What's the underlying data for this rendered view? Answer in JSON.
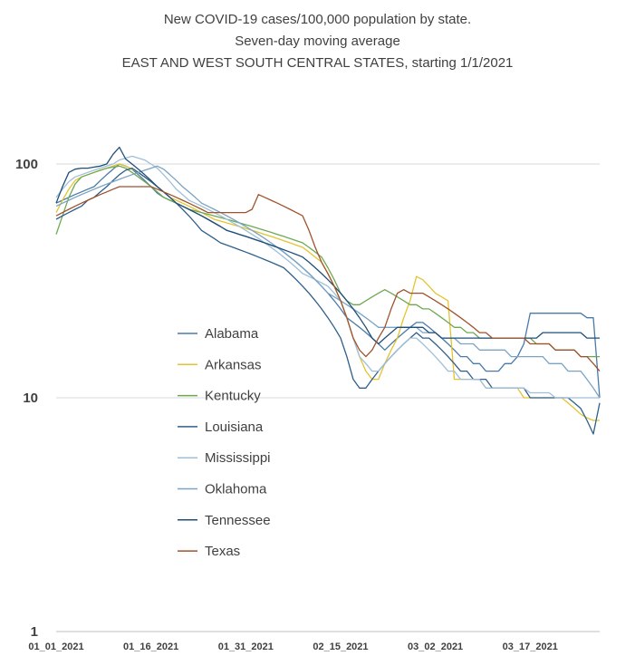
{
  "chart_data": {
    "type": "line",
    "title": [
      "New COVID-19 cases/100,000 population by state.",
      "Seven-day moving average",
      "EAST AND WEST SOUTH CENTRAL STATES, starting 1/1/2021"
    ],
    "xlabel": "",
    "ylabel": "",
    "yscale": "log",
    "ylim": [
      1,
      100
    ],
    "yticks": [
      1,
      10,
      100
    ],
    "ytick_labels": [
      "1",
      "10",
      "100"
    ],
    "xticks": [
      0,
      15,
      30,
      45,
      60,
      75
    ],
    "xtick_labels": [
      "01_01_2021",
      "01_16_2021",
      "01_31_2021",
      "02_15_2021",
      "03_02_2021",
      "03_17_2021"
    ],
    "x_count": 87,
    "grid": true,
    "legend_position": "center-left",
    "series": [
      {
        "name": "Alabama",
        "color": "#4a7aa8",
        "values": [
          68,
          70,
          72,
          74,
          76,
          78,
          80,
          85,
          90,
          95,
          100,
          98,
          95,
          90,
          85,
          80,
          75,
          72,
          70,
          68,
          66,
          64,
          62,
          60,
          58,
          56,
          54,
          52,
          51,
          50,
          49,
          48,
          47,
          46,
          45,
          44,
          42,
          40,
          38,
          36,
          34,
          32,
          30,
          28,
          26,
          24,
          22,
          21,
          20,
          19,
          18,
          17,
          16,
          17,
          18,
          19,
          20,
          21,
          21,
          20,
          19,
          18,
          17,
          16,
          15,
          15,
          14,
          14,
          13,
          13,
          13,
          14,
          14,
          15,
          17,
          23,
          23,
          23,
          23,
          23,
          23,
          23,
          23,
          23,
          22,
          22,
          10
        ]
      },
      {
        "name": "Arkansas",
        "color": "#e3c42f",
        "values": [
          62,
          70,
          78,
          85,
          88,
          90,
          92,
          94,
          96,
          98,
          100,
          98,
          95,
          92,
          88,
          84,
          80,
          76,
          72,
          70,
          68,
          66,
          64,
          62,
          60,
          58,
          57,
          56,
          55,
          54,
          53,
          52,
          51,
          50,
          49,
          48,
          47,
          46,
          45,
          44,
          42,
          40,
          38,
          34,
          30,
          26,
          22,
          18,
          15,
          13,
          12,
          12,
          14,
          16,
          18,
          22,
          26,
          33,
          32,
          30,
          28,
          27,
          26,
          12,
          12,
          12,
          12,
          12,
          11,
          11,
          11,
          11,
          11,
          11,
          10,
          10,
          10,
          10,
          10,
          10,
          10,
          9.5,
          9,
          8.5,
          8.2,
          8,
          8
        ]
      },
      {
        "name": "Kentucky",
        "color": "#6fa855",
        "values": [
          50,
          60,
          72,
          82,
          88,
          90,
          92,
          94,
          96,
          97,
          98,
          96,
          92,
          88,
          84,
          80,
          76,
          72,
          70,
          68,
          66,
          64,
          63,
          62,
          61,
          60,
          59,
          58,
          57,
          56,
          55,
          54,
          53,
          52,
          51,
          50,
          49,
          48,
          47,
          46,
          44,
          42,
          40,
          36,
          32,
          28,
          26,
          25,
          25,
          26,
          27,
          28,
          29,
          28,
          27,
          26,
          25,
          25,
          24,
          24,
          23,
          22,
          21,
          20,
          20,
          19,
          19,
          18,
          18,
          18,
          18,
          18,
          18,
          18,
          18,
          18,
          17,
          17,
          17,
          16,
          16,
          16,
          16,
          15,
          15,
          15,
          15
        ]
      },
      {
        "name": "Louisiana",
        "color": "#2f5f8a",
        "values": [
          58,
          60,
          62,
          64,
          66,
          70,
          72,
          76,
          80,
          85,
          90,
          94,
          96,
          92,
          88,
          84,
          80,
          76,
          72,
          68,
          64,
          60,
          56,
          52,
          50,
          48,
          46,
          45,
          44,
          43,
          42,
          41,
          40,
          39,
          38,
          37,
          36,
          34,
          32,
          30,
          28,
          26,
          24,
          22,
          20,
          18,
          15,
          12,
          11,
          11,
          12,
          13,
          14,
          15,
          16,
          17,
          18,
          19,
          18,
          18,
          17,
          16,
          15,
          14,
          13,
          13,
          12,
          12,
          12,
          11,
          11,
          11,
          11,
          11,
          11,
          10,
          10,
          10,
          10,
          10,
          10,
          10,
          9.5,
          9,
          8,
          7,
          9.5
        ]
      },
      {
        "name": "Mississippi",
        "color": "#9fbfd9",
        "values": [
          72,
          78,
          84,
          88,
          90,
          92,
          94,
          96,
          98,
          100,
          104,
          106,
          108,
          106,
          104,
          100,
          96,
          90,
          84,
          78,
          74,
          70,
          68,
          66,
          64,
          62,
          60,
          58,
          56,
          54,
          52,
          50,
          48,
          46,
          44,
          42,
          40,
          38,
          36,
          34,
          33,
          32,
          31,
          30,
          28,
          26,
          22,
          18,
          15,
          14,
          13,
          13,
          14,
          15,
          16,
          17,
          18,
          18,
          17,
          16,
          15,
          14,
          13,
          13,
          12,
          12,
          12,
          12,
          11,
          11,
          11,
          11,
          11,
          11,
          11,
          10.5,
          10.5,
          10.5,
          10.5,
          10,
          10,
          10,
          10,
          10,
          10,
          10,
          10
        ]
      },
      {
        "name": "Oklahoma",
        "color": "#7aa3c4",
        "values": [
          66,
          68,
          70,
          72,
          74,
          76,
          78,
          80,
          82,
          84,
          86,
          88,
          90,
          92,
          94,
          96,
          98,
          95,
          90,
          85,
          80,
          76,
          72,
          68,
          66,
          64,
          62,
          60,
          58,
          56,
          54,
          52,
          50,
          48,
          46,
          44,
          42,
          40,
          38,
          36,
          34,
          32,
          30,
          28,
          27,
          26,
          25,
          24,
          23,
          22,
          21,
          20,
          20,
          20,
          20,
          20,
          20,
          20,
          19,
          19,
          19,
          18,
          18,
          18,
          17,
          17,
          17,
          16,
          16,
          16,
          16,
          16,
          15,
          15,
          15,
          15,
          15,
          15,
          14,
          14,
          14,
          13,
          13,
          13,
          12,
          11,
          10
        ]
      },
      {
        "name": "Tennessee",
        "color": "#1f4e79",
        "values": [
          68,
          80,
          92,
          95,
          96,
          96,
          97,
          98,
          100,
          110,
          118,
          105,
          100,
          95,
          90,
          85,
          80,
          76,
          72,
          68,
          66,
          64,
          62,
          60,
          58,
          56,
          54,
          52,
          51,
          50,
          49,
          48,
          47,
          46,
          45,
          44,
          43,
          42,
          41,
          40,
          38,
          36,
          34,
          32,
          30,
          28,
          26,
          24,
          22,
          20,
          18,
          17,
          18,
          19,
          20,
          20,
          20,
          20,
          20,
          19,
          19,
          18,
          18,
          18,
          18,
          18,
          18,
          18,
          18,
          18,
          18,
          18,
          18,
          18,
          18,
          18,
          18,
          19,
          19,
          19,
          19,
          19,
          19,
          19,
          18,
          18,
          18
        ]
      },
      {
        "name": "Texas",
        "color": "#a0522d",
        "values": [
          60,
          62,
          64,
          66,
          68,
          70,
          72,
          74,
          76,
          78,
          80,
          80,
          80,
          80,
          80,
          80,
          78,
          76,
          74,
          72,
          70,
          68,
          66,
          64,
          62,
          62,
          62,
          62,
          62,
          62,
          62,
          64,
          74,
          72,
          70,
          68,
          66,
          64,
          62,
          60,
          52,
          44,
          38,
          34,
          30,
          26,
          22,
          18,
          16,
          15,
          16,
          18,
          20,
          24,
          28,
          29,
          28,
          28,
          28,
          27,
          26,
          25,
          24,
          23,
          22,
          21,
          20,
          19,
          19,
          18,
          18,
          18,
          18,
          18,
          18,
          17,
          17,
          17,
          17,
          16,
          16,
          16,
          16,
          15,
          15,
          14,
          13
        ]
      }
    ]
  }
}
